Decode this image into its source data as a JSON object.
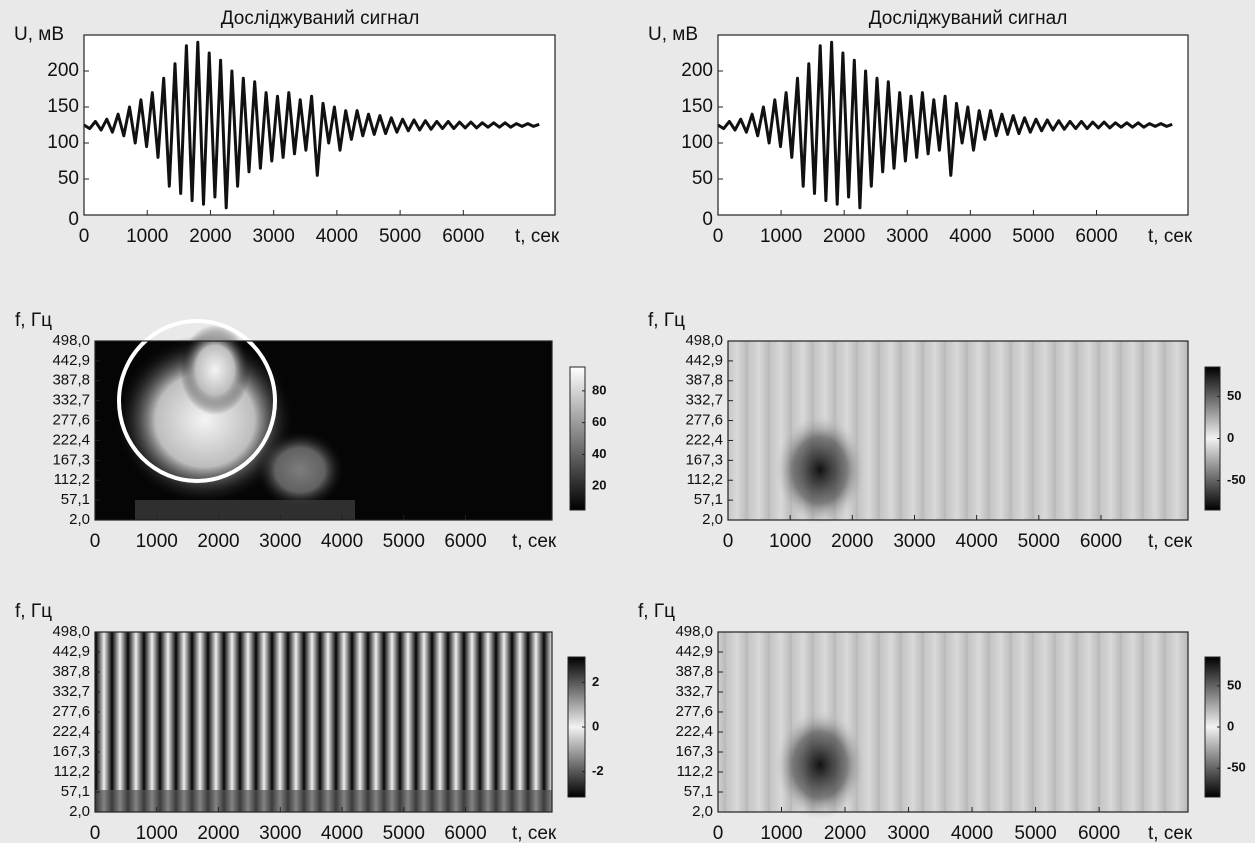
{
  "chart_data": [
    {
      "type": "line",
      "title": "Досліджуваний сигнал",
      "ylabel": "U, мВ",
      "xlabel": "t, сек",
      "xlim": [
        0,
        7450
      ],
      "ylim": [
        0,
        250
      ],
      "xticks": [
        0,
        1000,
        2000,
        3000,
        4000,
        5000,
        6000
      ],
      "yticks": [
        0,
        50,
        100,
        150,
        200
      ],
      "color": "#111111",
      "x": [
        0,
        90,
        180,
        270,
        360,
        450,
        540,
        630,
        720,
        810,
        900,
        990,
        1080,
        1170,
        1260,
        1350,
        1440,
        1530,
        1620,
        1710,
        1800,
        1890,
        1980,
        2070,
        2160,
        2250,
        2340,
        2430,
        2520,
        2610,
        2700,
        2790,
        2880,
        2970,
        3060,
        3150,
        3240,
        3330,
        3420,
        3510,
        3600,
        3690,
        3780,
        3870,
        3960,
        4050,
        4140,
        4230,
        4320,
        4410,
        4500,
        4590,
        4680,
        4770,
        4860,
        4950,
        5040,
        5130,
        5220,
        5310,
        5400,
        5490,
        5580,
        5670,
        5760,
        5850,
        5940,
        6030,
        6120,
        6210,
        6300,
        6390,
        6480,
        6570,
        6660,
        6750,
        6840,
        6930,
        7020,
        7110,
        7200
      ],
      "values": [
        125,
        120,
        130,
        118,
        133,
        115,
        140,
        110,
        150,
        100,
        160,
        95,
        170,
        80,
        190,
        40,
        210,
        30,
        235,
        20,
        240,
        15,
        225,
        25,
        215,
        10,
        200,
        40,
        190,
        60,
        185,
        65,
        170,
        75,
        165,
        80,
        170,
        85,
        160,
        90,
        165,
        55,
        155,
        100,
        150,
        90,
        145,
        105,
        145,
        110,
        140,
        112,
        138,
        113,
        135,
        115,
        133,
        117,
        132,
        118,
        131,
        119,
        130,
        120,
        130,
        120,
        129,
        121,
        129,
        121,
        128,
        122,
        128,
        122,
        128,
        122,
        127,
        123,
        127,
        123,
        126
      ]
    },
    {
      "type": "line",
      "title": "Досліджуваний сигнал",
      "ylabel": "U, мВ",
      "xlabel": "t, сек",
      "xlim": [
        0,
        7450
      ],
      "ylim": [
        0,
        250
      ],
      "xticks": [
        0,
        1000,
        2000,
        3000,
        4000,
        5000,
        6000
      ],
      "yticks": [
        0,
        50,
        100,
        150,
        200
      ],
      "color": "#111111",
      "x": [
        0,
        90,
        180,
        270,
        360,
        450,
        540,
        630,
        720,
        810,
        900,
        990,
        1080,
        1170,
        1260,
        1350,
        1440,
        1530,
        1620,
        1710,
        1800,
        1890,
        1980,
        2070,
        2160,
        2250,
        2340,
        2430,
        2520,
        2610,
        2700,
        2790,
        2880,
        2970,
        3060,
        3150,
        3240,
        3330,
        3420,
        3510,
        3600,
        3690,
        3780,
        3870,
        3960,
        4050,
        4140,
        4230,
        4320,
        4410,
        4500,
        4590,
        4680,
        4770,
        4860,
        4950,
        5040,
        5130,
        5220,
        5310,
        5400,
        5490,
        5580,
        5670,
        5760,
        5850,
        5940,
        6030,
        6120,
        6210,
        6300,
        6390,
        6480,
        6570,
        6660,
        6750,
        6840,
        6930,
        7020,
        7110,
        7200
      ],
      "values": [
        125,
        120,
        130,
        118,
        133,
        115,
        140,
        110,
        150,
        100,
        160,
        95,
        170,
        80,
        190,
        40,
        210,
        30,
        235,
        20,
        240,
        15,
        225,
        25,
        215,
        10,
        200,
        40,
        190,
        60,
        185,
        65,
        170,
        75,
        165,
        80,
        170,
        85,
        160,
        90,
        165,
        55,
        155,
        100,
        150,
        90,
        145,
        105,
        145,
        110,
        140,
        112,
        138,
        113,
        135,
        115,
        133,
        117,
        132,
        118,
        131,
        119,
        130,
        120,
        130,
        120,
        129,
        121,
        129,
        121,
        128,
        122,
        128,
        122,
        128,
        122,
        127,
        123,
        127,
        123,
        126
      ]
    },
    {
      "type": "heatmap",
      "ylabel": "f, Гц",
      "xlabel": "t, сек",
      "xlim": [
        0,
        7400
      ],
      "ylim": [
        2,
        498
      ],
      "xticks": [
        0,
        1000,
        2000,
        3000,
        4000,
        5000,
        6000
      ],
      "yticks": [
        {
          "value": 2,
          "label": "2,0"
        },
        {
          "value": 57.1,
          "label": "57,1"
        },
        {
          "value": 112.2,
          "label": "112,2"
        },
        {
          "value": 167.3,
          "label": "167,3"
        },
        {
          "value": 222.4,
          "label": "222,4"
        },
        {
          "value": 277.6,
          "label": "277,6"
        },
        {
          "value": 332.7,
          "label": "332,7"
        },
        {
          "value": 387.8,
          "label": "387,8"
        },
        {
          "value": 442.9,
          "label": "442,9"
        },
        {
          "value": 498,
          "label": "498,0"
        }
      ],
      "colorbar_lim": [
        5,
        95
      ],
      "colorbar_ticks": [
        20,
        40,
        60,
        80
      ]
    },
    {
      "type": "heatmap",
      "ylabel": "f, Гц",
      "xlabel": "t, сек",
      "xlim": [
        0,
        7400
      ],
      "ylim": [
        2,
        498
      ],
      "xticks": [
        0,
        1000,
        2000,
        3000,
        4000,
        5000,
        6000
      ],
      "yticks": [
        {
          "value": 2,
          "label": "2,0"
        },
        {
          "value": 57.1,
          "label": "57,1"
        },
        {
          "value": 112.2,
          "label": "112,2"
        },
        {
          "value": 167.3,
          "label": "167,3"
        },
        {
          "value": 222.4,
          "label": "222,4"
        },
        {
          "value": 277.6,
          "label": "277,6"
        },
        {
          "value": 332.7,
          "label": "332,7"
        },
        {
          "value": 387.8,
          "label": "387,8"
        },
        {
          "value": 442.9,
          "label": "442,9"
        },
        {
          "value": 498,
          "label": "498,0"
        }
      ],
      "colorbar_lim": [
        -85,
        85
      ],
      "colorbar_ticks": [
        -50,
        0,
        50
      ]
    },
    {
      "type": "heatmap",
      "ylabel": "f, Гц",
      "xlabel": "t, сек",
      "xlim": [
        0,
        7400
      ],
      "ylim": [
        2,
        498
      ],
      "xticks": [
        0,
        1000,
        2000,
        3000,
        4000,
        5000,
        6000
      ],
      "yticks": [
        {
          "value": 2,
          "label": "2,0"
        },
        {
          "value": 57.1,
          "label": "57,1"
        },
        {
          "value": 112.2,
          "label": "112,2"
        },
        {
          "value": 167.3,
          "label": "167,3"
        },
        {
          "value": 222.4,
          "label": "222,4"
        },
        {
          "value": 277.6,
          "label": "277,6"
        },
        {
          "value": 332.7,
          "label": "332,7"
        },
        {
          "value": 387.8,
          "label": "387,8"
        },
        {
          "value": 442.9,
          "label": "442,9"
        },
        {
          "value": 498,
          "label": "498,0"
        }
      ],
      "colorbar_lim": [
        -3.14,
        3.14
      ],
      "colorbar_ticks": [
        -2,
        0,
        2
      ]
    },
    {
      "type": "heatmap",
      "ylabel": "f, Гц",
      "xlabel": "t, сек",
      "xlim": [
        0,
        7400
      ],
      "ylim": [
        2,
        498
      ],
      "xticks": [
        0,
        1000,
        2000,
        3000,
        4000,
        5000,
        6000
      ],
      "yticks": [
        {
          "value": 2,
          "label": "2,0"
        },
        {
          "value": 57.1,
          "label": "57,1"
        },
        {
          "value": 112.2,
          "label": "112,2"
        },
        {
          "value": 167.3,
          "label": "167,3"
        },
        {
          "value": 222.4,
          "label": "222,4"
        },
        {
          "value": 277.6,
          "label": "277,6"
        },
        {
          "value": 332.7,
          "label": "332,7"
        },
        {
          "value": 387.8,
          "label": "387,8"
        },
        {
          "value": 442.9,
          "label": "442,9"
        },
        {
          "value": 498,
          "label": "498,0"
        }
      ],
      "colorbar_lim": [
        -85,
        85
      ],
      "colorbar_ticks": [
        -50,
        0,
        50
      ]
    }
  ]
}
